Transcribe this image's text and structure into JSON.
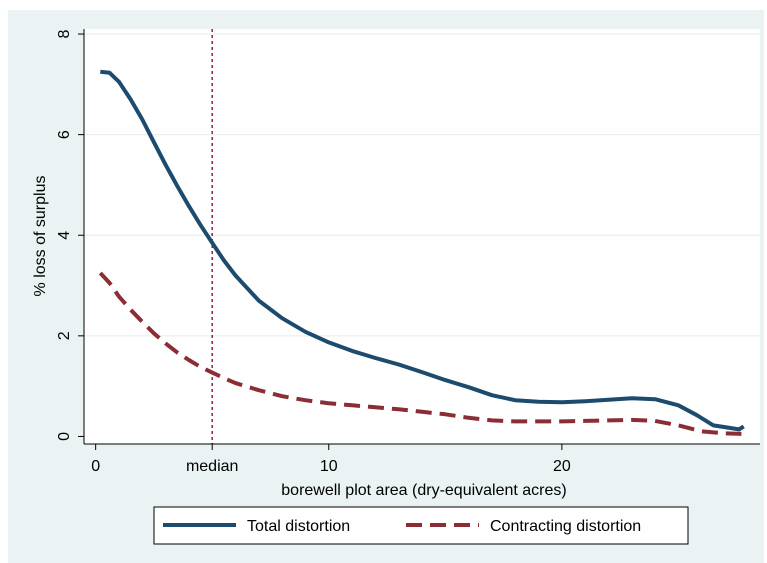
{
  "chart_data": {
    "type": "line",
    "title": "",
    "xlabel": "borewell plot area (dry-equivalent acres)",
    "ylabel": "% loss of surplus",
    "xlim": [
      -0.5,
      28.5
    ],
    "ylim": [
      -0.15,
      8.1
    ],
    "x_ticks": [
      {
        "value": 0,
        "label": "0"
      },
      {
        "value": 5,
        "label": "median"
      },
      {
        "value": 10,
        "label": "10"
      },
      {
        "value": 20,
        "label": "20"
      }
    ],
    "y_ticks": [
      {
        "value": 0,
        "label": "0"
      },
      {
        "value": 2,
        "label": "2"
      },
      {
        "value": 4,
        "label": "4"
      },
      {
        "value": 6,
        "label": "6"
      },
      {
        "value": 8,
        "label": "8"
      }
    ],
    "grid": "horizontal",
    "reference_line": {
      "x": 5,
      "style": "dotted",
      "color": "#9b1b4e"
    },
    "legend": {
      "position": "bottom"
    },
    "series": [
      {
        "name": "Total distortion",
        "color": "#1d4b6e",
        "dash": "solid",
        "points": [
          [
            0.2,
            7.25
          ],
          [
            0.6,
            7.23
          ],
          [
            1.0,
            7.05
          ],
          [
            1.5,
            6.7
          ],
          [
            2.0,
            6.3
          ],
          [
            2.5,
            5.85
          ],
          [
            3.0,
            5.4
          ],
          [
            3.5,
            4.98
          ],
          [
            4.0,
            4.58
          ],
          [
            4.5,
            4.2
          ],
          [
            5.0,
            3.85
          ],
          [
            5.5,
            3.5
          ],
          [
            6.0,
            3.2
          ],
          [
            7.0,
            2.7
          ],
          [
            8.0,
            2.35
          ],
          [
            9.0,
            2.08
          ],
          [
            10.0,
            1.87
          ],
          [
            11.0,
            1.7
          ],
          [
            12.0,
            1.56
          ],
          [
            13.0,
            1.43
          ],
          [
            14.0,
            1.28
          ],
          [
            15.0,
            1.12
          ],
          [
            16.0,
            0.98
          ],
          [
            17.0,
            0.82
          ],
          [
            18.0,
            0.72
          ],
          [
            19.0,
            0.69
          ],
          [
            20.0,
            0.68
          ],
          [
            21.0,
            0.7
          ],
          [
            22.0,
            0.73
          ],
          [
            23.0,
            0.76
          ],
          [
            24.0,
            0.74
          ],
          [
            25.0,
            0.62
          ],
          [
            25.8,
            0.42
          ],
          [
            26.5,
            0.22
          ],
          [
            27.2,
            0.17
          ],
          [
            27.6,
            0.14
          ],
          [
            27.8,
            0.2
          ]
        ]
      },
      {
        "name": "Contracting distortion",
        "color": "#8b2d34",
        "dash": "dashed",
        "points": [
          [
            0.2,
            3.25
          ],
          [
            0.6,
            3.05
          ],
          [
            1.0,
            2.78
          ],
          [
            1.5,
            2.52
          ],
          [
            2.0,
            2.28
          ],
          [
            2.5,
            2.05
          ],
          [
            3.0,
            1.85
          ],
          [
            3.5,
            1.67
          ],
          [
            4.0,
            1.52
          ],
          [
            4.5,
            1.38
          ],
          [
            5.0,
            1.27
          ],
          [
            5.5,
            1.16
          ],
          [
            6.0,
            1.06
          ],
          [
            7.0,
            0.92
          ],
          [
            8.0,
            0.8
          ],
          [
            9.0,
            0.72
          ],
          [
            10.0,
            0.66
          ],
          [
            11.0,
            0.62
          ],
          [
            12.0,
            0.58
          ],
          [
            13.0,
            0.54
          ],
          [
            14.0,
            0.49
          ],
          [
            15.0,
            0.44
          ],
          [
            16.0,
            0.37
          ],
          [
            17.0,
            0.32
          ],
          [
            18.0,
            0.3
          ],
          [
            19.0,
            0.3
          ],
          [
            20.0,
            0.3
          ],
          [
            21.0,
            0.31
          ],
          [
            22.0,
            0.32
          ],
          [
            23.0,
            0.33
          ],
          [
            24.0,
            0.31
          ],
          [
            25.0,
            0.22
          ],
          [
            26.0,
            0.1
          ],
          [
            27.0,
            0.06
          ],
          [
            27.7,
            0.05
          ]
        ]
      }
    ]
  }
}
